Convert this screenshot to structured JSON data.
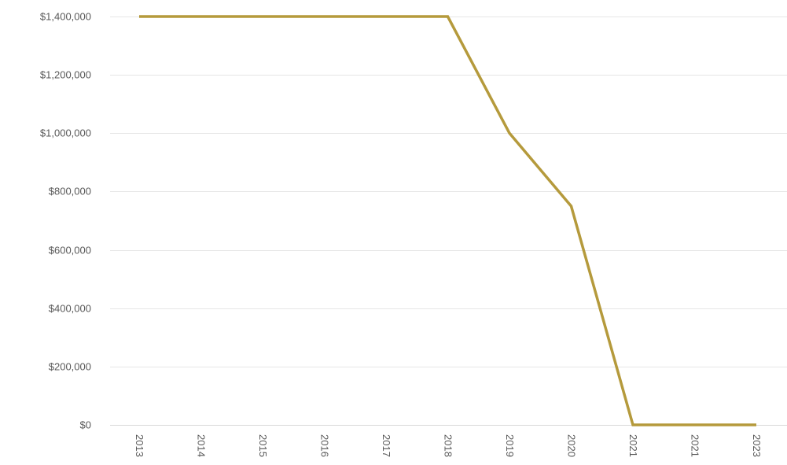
{
  "chart_data": {
    "type": "line",
    "title": "",
    "xlabel": "",
    "ylabel": "",
    "categories": [
      "2013",
      "2014",
      "2015",
      "2016",
      "2017",
      "2018",
      "2019",
      "2020",
      "2021",
      "2021",
      "2023"
    ],
    "series": [
      {
        "values": [
          1400000,
          1400000,
          1400000,
          1400000,
          1400000,
          1400000,
          1000000,
          750000,
          0,
          0,
          0
        ],
        "color": "#b59a3c"
      }
    ],
    "ylim": [
      0,
      1400000
    ],
    "y_ticks": [
      {
        "value": 0,
        "label": "$0"
      },
      {
        "value": 200000,
        "label": "$200,000"
      },
      {
        "value": 400000,
        "label": "$400,000"
      },
      {
        "value": 600000,
        "label": "$600,000"
      },
      {
        "value": 800000,
        "label": "$800,000"
      },
      {
        "value": 1000000,
        "label": "$1,000,000"
      },
      {
        "value": 1200000,
        "label": "$1,200,000"
      },
      {
        "value": 1400000,
        "label": "$1,400,000"
      }
    ],
    "grid": true,
    "legend": "none",
    "x_tick_rotation": "vertical"
  }
}
